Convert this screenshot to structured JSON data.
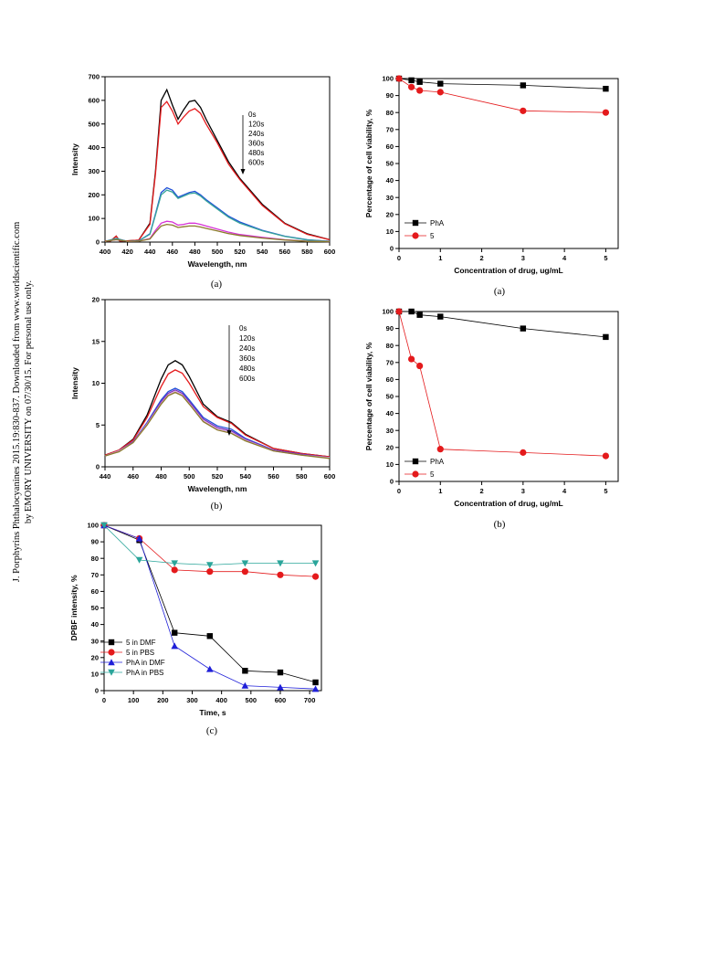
{
  "side_note": {
    "line1": "J. Porphyrins Phthalocyanines 2015.19:830-837. Downloaded from www.worldscientific.com",
    "line2": "by EMORY UNIVERSITY on 07/30/15. For personal use only."
  },
  "charts": [
    {
      "type": "line",
      "caption": "(a)",
      "xlabel": "Wavelength, nm",
      "ylabel": "Intensity",
      "xlim": [
        400,
        600
      ],
      "ylim": [
        0,
        700
      ],
      "xticks": [
        400,
        420,
        440,
        460,
        480,
        500,
        520,
        540,
        560,
        580,
        600
      ],
      "yticks": [
        0,
        100,
        200,
        300,
        400,
        500,
        600,
        700
      ],
      "annotations": [
        "0s",
        "120s",
        "240s",
        "360s",
        "480s",
        "600s"
      ],
      "series": [
        {
          "name": "0s",
          "color": "#000000",
          "x": [
            400,
            405,
            410,
            413,
            420,
            430,
            440,
            445,
            450,
            455,
            460,
            465,
            470,
            475,
            480,
            485,
            490,
            500,
            510,
            520,
            540,
            560,
            580,
            600
          ],
          "y": [
            5,
            5,
            25,
            5,
            5,
            8,
            80,
            300,
            600,
            645,
            580,
            520,
            560,
            595,
            600,
            570,
            520,
            430,
            340,
            270,
            160,
            80,
            35,
            10
          ]
        },
        {
          "name": "120s",
          "color": "#e41a1c",
          "x": [
            400,
            405,
            410,
            413,
            420,
            430,
            440,
            445,
            450,
            455,
            460,
            465,
            470,
            475,
            480,
            485,
            490,
            500,
            510,
            520,
            540,
            560,
            580,
            600
          ],
          "y": [
            5,
            5,
            25,
            5,
            5,
            8,
            75,
            290,
            570,
            595,
            555,
            500,
            530,
            555,
            565,
            545,
            500,
            420,
            330,
            265,
            155,
            78,
            33,
            10
          ]
        },
        {
          "name": "240s",
          "color": "#1f4fd8",
          "x": [
            400,
            410,
            420,
            430,
            440,
            445,
            450,
            455,
            460,
            465,
            470,
            475,
            480,
            485,
            490,
            500,
            510,
            520,
            540,
            560,
            580,
            600
          ],
          "y": [
            3,
            15,
            3,
            5,
            35,
            120,
            210,
            230,
            220,
            190,
            200,
            210,
            215,
            200,
            180,
            145,
            110,
            85,
            50,
            25,
            10,
            3
          ]
        },
        {
          "name": "360s",
          "color": "#3aa59a",
          "x": [
            400,
            410,
            420,
            430,
            440,
            445,
            450,
            455,
            460,
            465,
            470,
            475,
            480,
            485,
            490,
            500,
            510,
            520,
            540,
            560,
            580,
            600
          ],
          "y": [
            3,
            15,
            3,
            5,
            33,
            115,
            200,
            220,
            212,
            185,
            195,
            205,
            208,
            195,
            175,
            140,
            105,
            80,
            48,
            24,
            9,
            3
          ]
        },
        {
          "name": "480s",
          "color": "#d633d6",
          "x": [
            400,
            410,
            420,
            430,
            440,
            445,
            450,
            455,
            460,
            465,
            470,
            475,
            480,
            485,
            490,
            500,
            510,
            520,
            540,
            560,
            580,
            600
          ],
          "y": [
            3,
            10,
            3,
            4,
            15,
            50,
            80,
            88,
            85,
            72,
            75,
            80,
            80,
            75,
            68,
            55,
            42,
            32,
            20,
            10,
            4,
            2
          ]
        },
        {
          "name": "600s",
          "color": "#8b7a2a",
          "x": [
            400,
            410,
            420,
            430,
            440,
            445,
            450,
            455,
            460,
            465,
            470,
            475,
            480,
            485,
            490,
            500,
            510,
            520,
            540,
            560,
            580,
            600
          ],
          "y": [
            3,
            10,
            3,
            4,
            13,
            42,
            68,
            75,
            72,
            62,
            65,
            68,
            68,
            64,
            58,
            47,
            36,
            28,
            17,
            9,
            3,
            2
          ]
        }
      ]
    },
    {
      "type": "line",
      "caption": "(a)",
      "xlabel": "Concentration of drug, ug/mL",
      "ylabel": "Percentage of cell viability, %",
      "xlim": [
        0,
        5.3
      ],
      "ylim": [
        0,
        100
      ],
      "xticks": [
        0,
        1,
        2,
        3,
        4,
        5
      ],
      "yticks": [
        0,
        10,
        20,
        30,
        40,
        50,
        60,
        70,
        80,
        90,
        100
      ],
      "series": [
        {
          "name": "PhA",
          "color": "#000000",
          "marker": "square",
          "x": [
            0,
            0.3,
            0.5,
            1,
            3,
            5
          ],
          "y": [
            100,
            99,
            98,
            97,
            96,
            94
          ]
        },
        {
          "name": "5",
          "color": "#e41a1c",
          "marker": "circle",
          "x": [
            0,
            0.3,
            0.5,
            1,
            3,
            5
          ],
          "y": [
            100,
            95,
            93,
            92,
            81,
            80
          ]
        }
      ]
    },
    {
      "type": "line",
      "caption": "(b)",
      "xlabel": "Wavelength, nm",
      "ylabel": "Intensity",
      "xlim": [
        440,
        600
      ],
      "ylim": [
        0,
        20
      ],
      "xticks": [
        440,
        460,
        480,
        500,
        520,
        540,
        560,
        580,
        600
      ],
      "yticks": [
        0,
        5,
        10,
        15,
        20
      ],
      "annotations": [
        "0s",
        "120s",
        "240s",
        "360s",
        "480s",
        "600s"
      ],
      "series": [
        {
          "name": "0s",
          "color": "#000000",
          "x": [
            440,
            450,
            460,
            470,
            480,
            485,
            490,
            495,
            500,
            510,
            520,
            530,
            540,
            560,
            580,
            600
          ],
          "y": [
            1.4,
            2.0,
            3.3,
            6.2,
            10.5,
            12.2,
            12.7,
            12.2,
            10.8,
            7.5,
            6.0,
            5.3,
            3.9,
            2.2,
            1.6,
            1.2
          ]
        },
        {
          "name": "120s",
          "color": "#e41a1c",
          "x": [
            440,
            450,
            460,
            470,
            480,
            485,
            490,
            495,
            500,
            510,
            520,
            530,
            540,
            560,
            580,
            600
          ],
          "y": [
            1.4,
            2.0,
            3.2,
            5.9,
            9.6,
            11.1,
            11.6,
            11.2,
            10.0,
            7.2,
            5.9,
            5.2,
            3.8,
            2.2,
            1.6,
            1.2
          ]
        },
        {
          "name": "240s",
          "color": "#1f4fd8",
          "x": [
            440,
            450,
            460,
            470,
            480,
            485,
            490,
            495,
            500,
            510,
            520,
            530,
            540,
            560,
            580,
            600
          ],
          "y": [
            1.3,
            1.9,
            3.0,
            5.3,
            8.0,
            9.0,
            9.4,
            9.0,
            8.0,
            5.9,
            4.9,
            4.5,
            3.4,
            2.0,
            1.5,
            1.1
          ]
        },
        {
          "name": "360s",
          "color": "#7b2fbf",
          "x": [
            440,
            450,
            460,
            470,
            480,
            485,
            490,
            495,
            500,
            510,
            520,
            530,
            540,
            560,
            580,
            600
          ],
          "y": [
            1.3,
            1.9,
            3.0,
            5.2,
            7.8,
            8.8,
            9.2,
            8.8,
            7.8,
            5.7,
            4.7,
            4.3,
            3.3,
            2.0,
            1.5,
            1.1
          ]
        },
        {
          "name": "480s",
          "color": "#d6a5d6",
          "x": [
            440,
            450,
            460,
            470,
            480,
            485,
            490,
            495,
            500,
            510,
            520,
            530,
            540,
            560,
            580,
            600
          ],
          "y": [
            1.3,
            1.9,
            2.9,
            5.1,
            7.6,
            8.6,
            9.0,
            8.6,
            7.6,
            5.5,
            4.5,
            4.1,
            3.2,
            1.9,
            1.4,
            1.1
          ]
        },
        {
          "name": "600s",
          "color": "#8b7a2a",
          "x": [
            440,
            450,
            460,
            470,
            480,
            485,
            490,
            495,
            500,
            510,
            520,
            530,
            540,
            560,
            580,
            600
          ],
          "y": [
            1.3,
            1.8,
            2.9,
            5.0,
            7.5,
            8.5,
            8.9,
            8.5,
            7.5,
            5.4,
            4.4,
            4.0,
            3.1,
            1.9,
            1.4,
            1.0
          ]
        }
      ]
    },
    {
      "type": "line",
      "caption": "(b)",
      "xlabel": "Concentration of drug, ug/mL",
      "ylabel": "Percentage of cell viability, %",
      "xlim": [
        0,
        5.3
      ],
      "ylim": [
        0,
        100
      ],
      "xticks": [
        0,
        1,
        2,
        3,
        4,
        5
      ],
      "yticks": [
        0,
        10,
        20,
        30,
        40,
        50,
        60,
        70,
        80,
        90,
        100
      ],
      "series": [
        {
          "name": "PhA",
          "color": "#000000",
          "marker": "square",
          "x": [
            0,
            0.3,
            0.5,
            1,
            3,
            5
          ],
          "y": [
            100,
            100,
            98,
            97,
            90,
            85
          ]
        },
        {
          "name": "5",
          "color": "#e41a1c",
          "marker": "circle",
          "x": [
            0,
            0.3,
            0.5,
            1,
            3,
            5
          ],
          "y": [
            100,
            72,
            68,
            19,
            17,
            15
          ]
        }
      ]
    },
    {
      "type": "line",
      "caption": "(c)",
      "xlabel": "Time, s",
      "ylabel": "DPBF intensity, %",
      "xlim": [
        0,
        740
      ],
      "ylim": [
        0,
        100
      ],
      "xticks": [
        0,
        100,
        200,
        300,
        400,
        500,
        600,
        700
      ],
      "yticks": [
        0,
        10,
        20,
        30,
        40,
        50,
        60,
        70,
        80,
        90,
        100
      ],
      "series": [
        {
          "name": "5 in DMF",
          "color": "#000000",
          "marker": "square",
          "x": [
            0,
            120,
            240,
            360,
            480,
            600,
            720
          ],
          "y": [
            100,
            91,
            35,
            33,
            12,
            11,
            5
          ]
        },
        {
          "name": "5 in PBS",
          "color": "#e41a1c",
          "marker": "circle",
          "x": [
            0,
            120,
            240,
            360,
            480,
            600,
            720
          ],
          "y": [
            100,
            92,
            73,
            72,
            72,
            70,
            69
          ]
        },
        {
          "name": "PhA in DMF",
          "color": "#1f1fd8",
          "marker": "triangle",
          "x": [
            0,
            120,
            240,
            360,
            480,
            600,
            720
          ],
          "y": [
            100,
            92,
            27,
            13,
            3,
            2,
            1
          ]
        },
        {
          "name": "PhA in PBS",
          "color": "#2aa59a",
          "marker": "triangle-down",
          "x": [
            0,
            120,
            240,
            360,
            480,
            600,
            720
          ],
          "y": [
            100,
            79,
            77,
            76,
            77,
            77,
            77
          ]
        }
      ]
    }
  ]
}
